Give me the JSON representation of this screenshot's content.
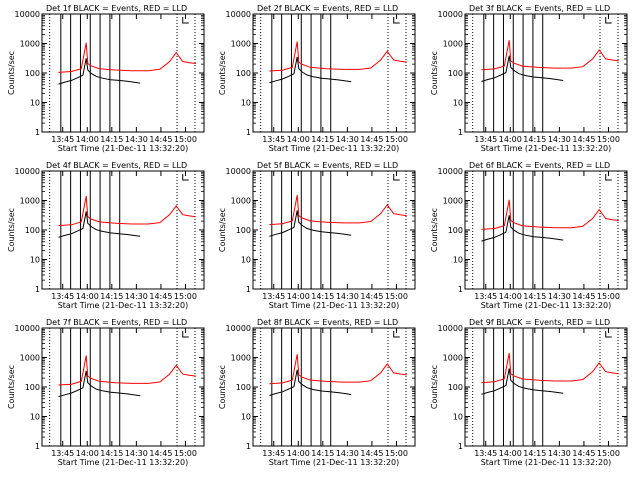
{
  "chart_data": [
    {
      "type": "line",
      "title": "Det 1f  BLACK = Events, RED = LLD",
      "xlabel": "Start Time (21-Dec-11 13:32:20)",
      "ylabel": "Counts/sec",
      "variant": 0
    },
    {
      "type": "line",
      "title": "Det 2f  BLACK = Events, RED = LLD",
      "xlabel": "Start Time (21-Dec-11 13:32:20)",
      "ylabel": "Counts/sec",
      "variant": 1
    },
    {
      "type": "line",
      "title": "Det 3f  BLACK = Events, RED = LLD",
      "xlabel": "Start Time (21-Dec-11 13:32:20)",
      "ylabel": "Counts/sec",
      "variant": 2
    },
    {
      "type": "line",
      "title": "Det 4f  BLACK = Events, RED = LLD",
      "xlabel": "Start Time (21-Dec-11 13:32:20)",
      "ylabel": "Counts/sec",
      "variant": 3
    },
    {
      "type": "line",
      "title": "Det 5f  BLACK = Events, RED = LLD",
      "xlabel": "Start Time (21-Dec-11 13:32:20)",
      "ylabel": "Counts/sec",
      "variant": 4
    },
    {
      "type": "line",
      "title": "Det 6f  BLACK = Events, RED = LLD",
      "xlabel": "Start Time (21-Dec-11 13:32:20)",
      "ylabel": "Counts/sec",
      "variant": 5
    },
    {
      "type": "line",
      "title": "Det 7f  BLACK = Events, RED = LLD",
      "xlabel": "Start Time (21-Dec-11 13:32:20)",
      "ylabel": "Counts/sec",
      "variant": 6
    },
    {
      "type": "line",
      "title": "Det 8f  BLACK = Events, RED = LLD",
      "xlabel": "Start Time (21-Dec-11 13:32:20)",
      "ylabel": "Counts/sec",
      "variant": 7
    },
    {
      "type": "line",
      "title": "Det 9f  BLACK = Events, RED = LLD",
      "xlabel": "Start Time (21-Dec-11 13:32:20)",
      "ylabel": "Counts/sec",
      "variant": 8
    }
  ],
  "shared": {
    "y_scale": "log",
    "ylim": [
      1,
      10000
    ],
    "y_ticks": [
      "1",
      "10",
      "100",
      "1000",
      "10000"
    ],
    "xlim_minutes_after_1332_20": [
      0,
      99
    ],
    "x_tick_labels": [
      "13:45",
      "14:00",
      "14:15",
      "14:30",
      "14:45",
      "15:00"
    ],
    "x_tick_minutes": [
      12.67,
      27.67,
      42.67,
      57.67,
      72.67,
      87.67
    ],
    "dotted_lines_minutes": [
      4.7,
      82.5,
      93.5
    ],
    "solid_lines_minutes": [
      11.5,
      17.5,
      23.5,
      29.5,
      35.5,
      41.5,
      47.5
    ],
    "colors": {
      "events": "#000000",
      "lld": "#ff0000",
      "axes": "#000000"
    },
    "events_series": {
      "name": "BLACK = Events",
      "x_min": [
        10,
        14,
        18,
        22,
        25,
        27,
        28,
        30,
        33,
        37,
        42,
        47,
        52,
        56,
        60
      ],
      "y": [
        60,
        70,
        80,
        100,
        120,
        450,
        180,
        140,
        110,
        95,
        85,
        80,
        75,
        70,
        65
      ]
    },
    "lld_series": {
      "name": "RED = LLD",
      "x_min": [
        10,
        18,
        24,
        27,
        28,
        30,
        35,
        45,
        55,
        65,
        72,
        78,
        82,
        86,
        90,
        94
      ],
      "y": [
        150,
        160,
        200,
        1500,
        300,
        250,
        200,
        180,
        170,
        170,
        190,
        350,
        700,
        350,
        320,
        300
      ]
    }
  }
}
